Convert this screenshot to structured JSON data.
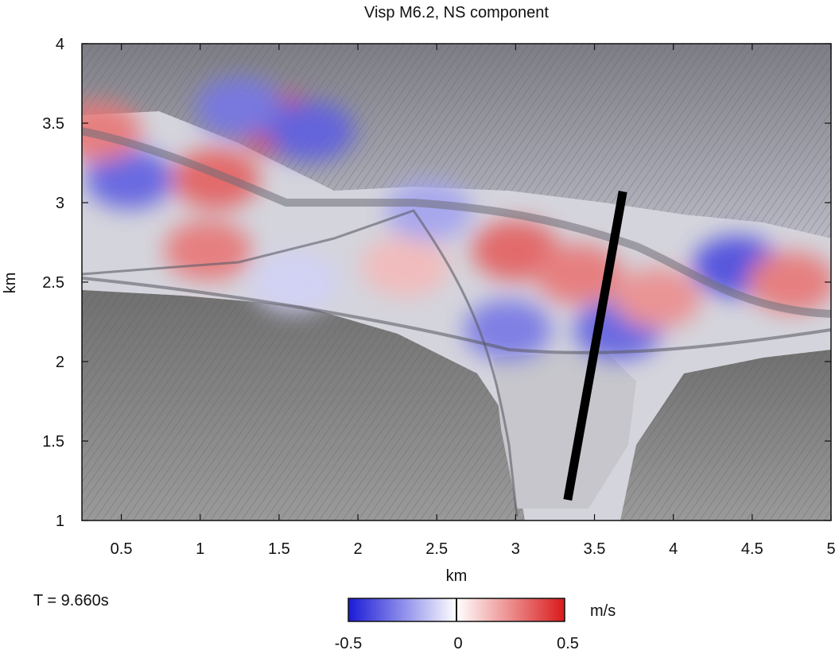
{
  "chart_data": {
    "type": "heatmap",
    "title": "Visp M6.2, NS component",
    "xlabel": "km",
    "ylabel": "km",
    "xlim": [
      0.25,
      5
    ],
    "ylim": [
      1,
      4
    ],
    "xticks": [
      0.5,
      1,
      1.5,
      2,
      2.5,
      3,
      3.5,
      4,
      4.5,
      5
    ],
    "yticks": [
      1,
      1.5,
      2,
      2.5,
      3,
      3.5,
      4
    ],
    "xtick_labels": [
      "0.5",
      "1",
      "1.5",
      "2",
      "2.5",
      "3",
      "3.5",
      "4",
      "4.5",
      "5"
    ],
    "ytick_labels": [
      "1",
      "1.5",
      "2",
      "2.5",
      "3",
      "3.5",
      "4"
    ],
    "time_label": "T = 9.660s",
    "colorbar": {
      "min": -0.5,
      "max": 0.5,
      "unit": "m/s",
      "tick_labels": [
        "-0.5",
        "0",
        "0.5"
      ],
      "colors": [
        "#1a1ad6",
        "#ffffff",
        "#d91a1a"
      ]
    },
    "fault_trace": {
      "x": [
        3.33,
        3.68
      ],
      "y": [
        1.13,
        3.07
      ]
    },
    "velocity_blobs": [
      {
        "x": 0.55,
        "y": 3.15,
        "v": -0.35
      },
      {
        "x": 1.1,
        "y": 3.15,
        "v": 0.35
      },
      {
        "x": 1.05,
        "y": 2.7,
        "v": 0.3
      },
      {
        "x": 1.5,
        "y": 3.5,
        "v": 0.45
      },
      {
        "x": 1.25,
        "y": 3.6,
        "v": -0.3
      },
      {
        "x": 1.7,
        "y": 3.45,
        "v": -0.35
      },
      {
        "x": 0.35,
        "y": 3.45,
        "v": 0.3
      },
      {
        "x": 1.6,
        "y": 2.5,
        "v": -0.1
      },
      {
        "x": 2.3,
        "y": 2.6,
        "v": 0.15
      },
      {
        "x": 2.95,
        "y": 2.2,
        "v": -0.3
      },
      {
        "x": 3.0,
        "y": 2.7,
        "v": 0.35
      },
      {
        "x": 3.4,
        "y": 2.55,
        "v": 0.3
      },
      {
        "x": 3.65,
        "y": 2.2,
        "v": -0.35
      },
      {
        "x": 3.9,
        "y": 2.4,
        "v": 0.25
      },
      {
        "x": 4.4,
        "y": 2.6,
        "v": -0.4
      },
      {
        "x": 4.75,
        "y": 2.5,
        "v": 0.3
      },
      {
        "x": 2.45,
        "y": 2.95,
        "v": -0.2
      }
    ]
  }
}
